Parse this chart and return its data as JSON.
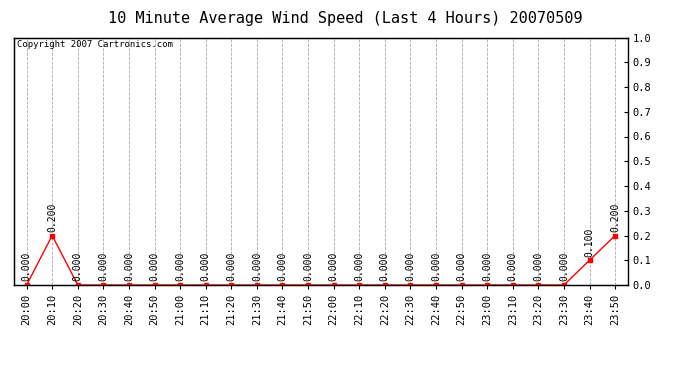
{
  "title": "10 Minute Average Wind Speed (Last 4 Hours) 20070509",
  "copyright_text": "Copyright 2007 Cartronics.com",
  "x_labels": [
    "20:00",
    "20:10",
    "20:20",
    "20:30",
    "20:40",
    "20:50",
    "21:00",
    "21:10",
    "21:20",
    "21:30",
    "21:40",
    "21:50",
    "22:00",
    "22:10",
    "22:20",
    "22:30",
    "22:40",
    "22:50",
    "23:00",
    "23:10",
    "23:20",
    "23:30",
    "23:40",
    "23:50"
  ],
  "y_values": [
    0.0,
    0.2,
    0.0,
    0.0,
    0.0,
    0.0,
    0.0,
    0.0,
    0.0,
    0.0,
    0.0,
    0.0,
    0.0,
    0.0,
    0.0,
    0.0,
    0.0,
    0.0,
    0.0,
    0.0,
    0.0,
    0.0,
    0.1,
    0.2
  ],
  "ylim": [
    0.0,
    1.0
  ],
  "yticks": [
    0.0,
    0.1,
    0.2,
    0.3,
    0.4,
    0.5,
    0.6,
    0.7,
    0.8,
    0.9,
    1.0
  ],
  "line_color": "#ff0000",
  "bg_color": "#ffffff",
  "plot_bg_color": "#ffffff",
  "grid_color": "#aaaaaa",
  "title_fontsize": 11,
  "annotation_fontsize": 7,
  "tick_fontsize": 7.5
}
